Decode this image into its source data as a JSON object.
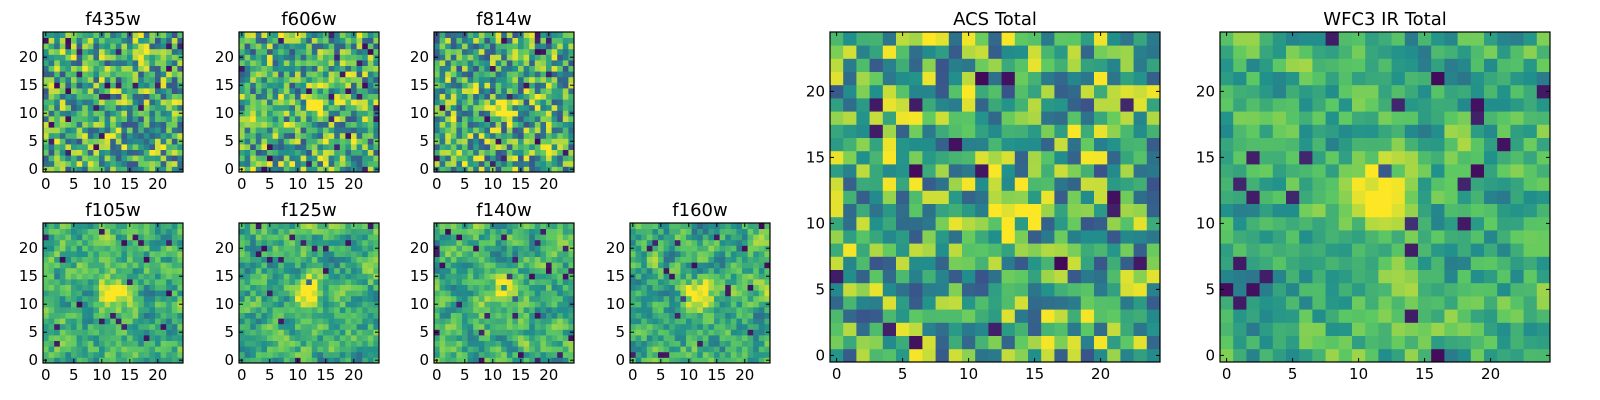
{
  "chart_data": [
    {
      "type": "heatmap",
      "title": "f435w",
      "grid": "25x25",
      "xlim": [
        0,
        24
      ],
      "ylim": [
        0,
        24
      ],
      "xticks": [
        "0",
        "5",
        "10",
        "15",
        "20"
      ],
      "yticks": [
        "0",
        "5",
        "10",
        "15",
        "20"
      ],
      "colormap": "viridis",
      "grid_lines": false,
      "source_peak": null
    },
    {
      "type": "heatmap",
      "title": "f606w",
      "grid": "25x25",
      "xlim": [
        0,
        24
      ],
      "ylim": [
        0,
        24
      ],
      "xticks": [
        "0",
        "5",
        "10",
        "15",
        "20"
      ],
      "yticks": [
        "0",
        "5",
        "10",
        "15",
        "20"
      ],
      "colormap": "viridis",
      "grid_lines": false,
      "source_peak": [
        13,
        11
      ]
    },
    {
      "type": "heatmap",
      "title": "f814w",
      "grid": "25x25",
      "xlim": [
        0,
        24
      ],
      "ylim": [
        0,
        24
      ],
      "xticks": [
        "0",
        "5",
        "10",
        "15",
        "20"
      ],
      "yticks": [
        "0",
        "5",
        "10",
        "15",
        "20"
      ],
      "colormap": "viridis",
      "grid_lines": false,
      "source_peak": [
        12,
        11
      ]
    },
    {
      "type": "heatmap",
      "title": "f105w",
      "grid": "25x25",
      "xlim": [
        0,
        24
      ],
      "ylim": [
        0,
        24
      ],
      "xticks": [
        "0",
        "5",
        "10",
        "15",
        "20"
      ],
      "yticks": [
        "0",
        "5",
        "10",
        "15",
        "20"
      ],
      "colormap": "viridis",
      "grid_lines": false,
      "source_peak": [
        12,
        12
      ]
    },
    {
      "type": "heatmap",
      "title": "f125w",
      "grid": "25x25",
      "xlim": [
        0,
        24
      ],
      "ylim": [
        0,
        24
      ],
      "xticks": [
        "0",
        "5",
        "10",
        "15",
        "20"
      ],
      "yticks": [
        "0",
        "5",
        "10",
        "15",
        "20"
      ],
      "colormap": "viridis",
      "grid_lines": false,
      "source_peak": [
        12,
        12
      ]
    },
    {
      "type": "heatmap",
      "title": "f140w",
      "grid": "25x25",
      "xlim": [
        0,
        24
      ],
      "ylim": [
        0,
        24
      ],
      "xticks": [
        "0",
        "5",
        "10",
        "15",
        "20"
      ],
      "yticks": [
        "0",
        "5",
        "10",
        "15",
        "20"
      ],
      "colormap": "viridis",
      "grid_lines": false,
      "source_peak": [
        12,
        12
      ]
    },
    {
      "type": "heatmap",
      "title": "f160w",
      "grid": "25x25",
      "xlim": [
        0,
        24
      ],
      "ylim": [
        0,
        24
      ],
      "xticks": [
        "0",
        "5",
        "10",
        "15",
        "20"
      ],
      "yticks": [
        "0",
        "5",
        "10",
        "15",
        "20"
      ],
      "colormap": "viridis",
      "grid_lines": false,
      "source_peak": [
        12,
        11
      ]
    },
    {
      "type": "heatmap",
      "title": "ACS Total",
      "grid": "25x25",
      "xlim": [
        0,
        24
      ],
      "ylim": [
        0,
        24
      ],
      "xticks": [
        "0",
        "5",
        "10",
        "15",
        "20"
      ],
      "yticks": [
        "0",
        "5",
        "10",
        "15",
        "20"
      ],
      "colormap": "viridis",
      "grid_lines": false,
      "source_peak": [
        13,
        11
      ]
    },
    {
      "type": "heatmap",
      "title": "WFC3 IR Total",
      "grid": "25x25",
      "xlim": [
        0,
        24
      ],
      "ylim": [
        0,
        24
      ],
      "xticks": [
        "0",
        "5",
        "10",
        "15",
        "20"
      ],
      "yticks": [
        "0",
        "5",
        "10",
        "15",
        "20"
      ],
      "colormap": "viridis",
      "grid_lines": false,
      "source_peak": [
        11,
        12
      ]
    }
  ],
  "colors": {
    "colormap_stops": [
      "#440154",
      "#3b528b",
      "#21918c",
      "#5ec962",
      "#fde725"
    ]
  }
}
